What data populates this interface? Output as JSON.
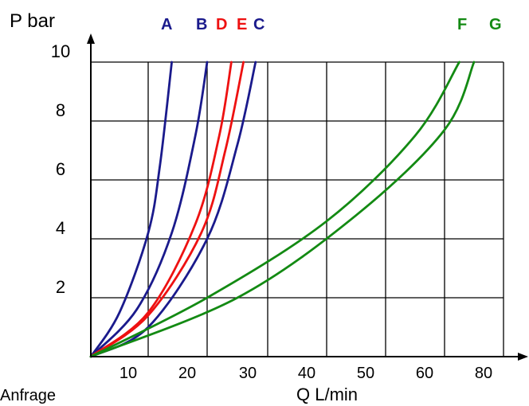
{
  "chart_data": {
    "type": "line",
    "y_axis_label": "P bar",
    "x_axis_label": "Q L/min",
    "footer_text": "Anfrage",
    "x_ticks": [
      "10",
      "20",
      "30",
      "40",
      "50",
      "60",
      "80"
    ],
    "y_ticks": [
      "2",
      "4",
      "6",
      "8",
      "10"
    ],
    "ylim": [
      0,
      10
    ],
    "grid": true,
    "legend_placement": "top",
    "series": [
      {
        "name": "A",
        "color": "#1a1a8c",
        "points": [
          [
            0,
            0
          ],
          [
            5,
            1.5
          ],
          [
            10,
            4.2
          ],
          [
            12,
            6.5
          ],
          [
            14,
            10
          ]
        ]
      },
      {
        "name": "B",
        "color": "#1a1a8c",
        "points": [
          [
            0,
            0
          ],
          [
            8,
            1.6
          ],
          [
            14,
            4.2
          ],
          [
            18,
            7.5
          ],
          [
            20,
            10
          ]
        ]
      },
      {
        "name": "D",
        "color": "#ee1111",
        "points": [
          [
            0,
            0
          ],
          [
            10,
            1.5
          ],
          [
            18,
            4.5
          ],
          [
            22,
            7.5
          ],
          [
            24,
            10
          ]
        ]
      },
      {
        "name": "E",
        "color": "#ee1111",
        "points": [
          [
            0,
            0
          ],
          [
            10,
            1.4
          ],
          [
            19,
            4.2
          ],
          [
            23,
            7.0
          ],
          [
            26,
            10
          ]
        ]
      },
      {
        "name": "C",
        "color": "#1a1a8c",
        "points": [
          [
            0,
            0
          ],
          [
            10,
            1.0
          ],
          [
            20,
            4.0
          ],
          [
            25,
            7.2
          ],
          [
            28,
            10
          ]
        ]
      },
      {
        "name": "F",
        "color": "#138a13",
        "points": [
          [
            0,
            0
          ],
          [
            20,
            2.0
          ],
          [
            40,
            4.6
          ],
          [
            55,
            7.5
          ],
          [
            65,
            10
          ]
        ]
      },
      {
        "name": "G",
        "color": "#138a13",
        "points": [
          [
            0,
            0
          ],
          [
            25,
            2.0
          ],
          [
            45,
            4.8
          ],
          [
            60,
            7.7
          ],
          [
            70,
            10
          ]
        ]
      }
    ]
  }
}
